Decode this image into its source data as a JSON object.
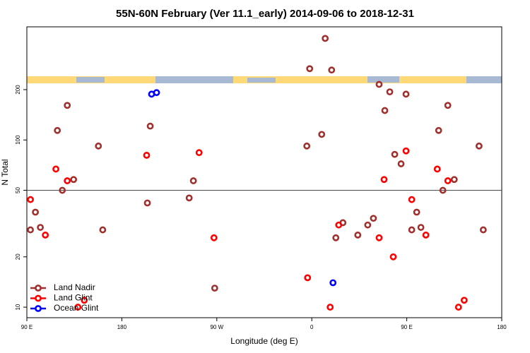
{
  "chart_data": {
    "type": "scatter",
    "title": "55N-60N February (Ver 11.1_early)   2014-09-06 to 2018-12-31",
    "x_label": "Longitude (deg E)",
    "y_label": "N Total",
    "log_y": true,
    "hline": 50,
    "legend": "bottom-left",
    "xlim": [
      90,
      540
    ],
    "ylim": [
      8.65,
      475
    ],
    "xticks": [
      {
        "value": 90,
        "label": "90 E"
      },
      180,
      {
        "value": 270,
        "label": "90 W"
      },
      {
        "value": 360,
        "label": "0"
      },
      {
        "value": 450,
        "label": "90 E"
      },
      {
        "value": 540,
        "label": "180"
      }
    ],
    "yticks": [
      10,
      20,
      50,
      100,
      200
    ],
    "series": [
      {
        "name": "Land Nadir",
        "color": "#a0302e",
        "x": [
          93.4,
          98.1,
          102.8,
          118.9,
          123.6,
          128.3,
          134.3,
          157.8,
          161.9,
          204.2,
          206.9,
          243.8,
          247.8,
          268,
          355.3,
          358,
          369.4,
          372.7,
          378.8,
          382.8,
          389.5,
          403.6,
          413,
          418.4,
          423.8,
          429.2,
          433.9,
          438.6,
          444.6,
          449.3,
          454.7,
          459.4,
          463.4,
          480.2,
          484.2,
          488.9,
          495,
          518.5,
          522.5
        ],
        "values": [
          29,
          37,
          30,
          114,
          50,
          161,
          58,
          92,
          29,
          42,
          121,
          45,
          57,
          13,
          92,
          267,
          108,
          405,
          262,
          26,
          32,
          27,
          31,
          34,
          215,
          150,
          194,
          82,
          72,
          188,
          29,
          37,
          30,
          114,
          50,
          161,
          58,
          92,
          29
        ]
      },
      {
        "name": "Land Glint",
        "color": "#ff0000",
        "x": [
          93.4,
          107.5,
          117.5,
          128.3,
          138.4,
          144.4,
          203.5,
          253.2,
          267.3,
          356,
          377.4,
          385.5,
          423.8,
          428.5,
          437.2,
          449.3,
          454.7,
          468.1,
          478.9,
          488.9,
          499,
          504.4
        ],
        "values": [
          44,
          27,
          67,
          57,
          10,
          11,
          81,
          84,
          26,
          15,
          10,
          31,
          26,
          58,
          20,
          86,
          44,
          27,
          67,
          57,
          10,
          11
        ]
      },
      {
        "name": "Ocean Glint",
        "color": "#0000ff",
        "x": [
          208.2,
          212.9,
          380.1
        ],
        "values": [
          188,
          192,
          14
        ]
      }
    ]
  }
}
